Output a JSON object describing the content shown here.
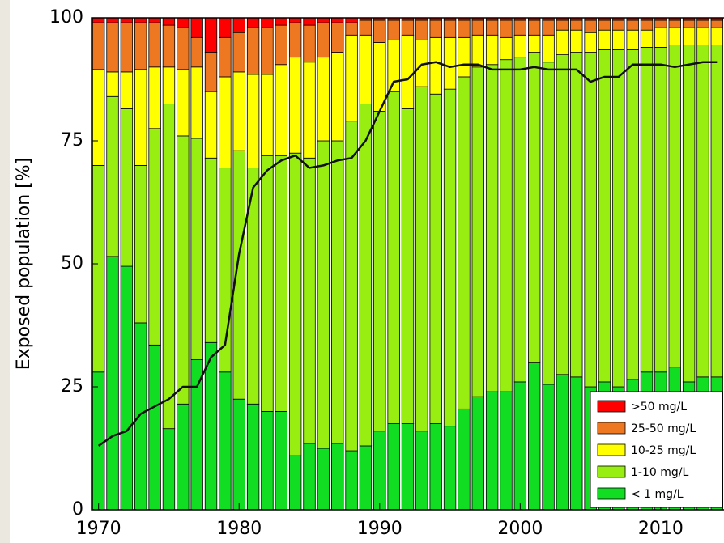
{
  "chart_data": {
    "type": "stacked-bar",
    "ylabel": "Exposed population [%]",
    "x": [
      1970,
      1971,
      1972,
      1973,
      1974,
      1975,
      1976,
      1977,
      1978,
      1979,
      1980,
      1981,
      1982,
      1983,
      1984,
      1985,
      1986,
      1987,
      1988,
      1989,
      1990,
      1991,
      1992,
      1993,
      1994,
      1995,
      1996,
      1997,
      1998,
      1999,
      2000,
      2001,
      2002,
      2003,
      2004,
      2005,
      2006,
      2007,
      2008,
      2009,
      2010,
      2011,
      2012,
      2013,
      2014
    ],
    "xlim": [
      1969.5,
      2014.5
    ],
    "xticks": [
      1970,
      1980,
      1990,
      2000,
      2010
    ],
    "ylim": [
      0,
      100
    ],
    "yticks": [
      0,
      25,
      50,
      75,
      100
    ],
    "legend": "lower right",
    "series": [
      {
        "name": "< 1 mg/L",
        "color": "#11dd22",
        "values": [
          28,
          51.5,
          49.5,
          38,
          33.5,
          16.5,
          21.5,
          30.5,
          34,
          28,
          22.5,
          21.5,
          20,
          20,
          11,
          13.5,
          12.5,
          13.5,
          12,
          13,
          16,
          17.5,
          17.5,
          16,
          17.5,
          17,
          20.5,
          23,
          24,
          24,
          26,
          30,
          25.5,
          27.5,
          27,
          25,
          26,
          25,
          26.5,
          28,
          28,
          29,
          26,
          27,
          27
        ]
      },
      {
        "name": "1-10 mg/L",
        "color": "#99ee11",
        "values": [
          42,
          32.5,
          32,
          32,
          44,
          66,
          54.5,
          45,
          37.5,
          41.5,
          50.5,
          48,
          52,
          52,
          61.5,
          58,
          62.5,
          61.5,
          67,
          69.5,
          65,
          67.5,
          64,
          70,
          67,
          68.5,
          67.5,
          67,
          66.5,
          67.5,
          66,
          63,
          65.5,
          65,
          66,
          68,
          67.5,
          68.5,
          67,
          66,
          66,
          65.5,
          68.5,
          67.5,
          67.5
        ]
      },
      {
        "name": "10-25 mg/L",
        "color": "#ffff00",
        "values": [
          19.5,
          5,
          7.5,
          19.5,
          12.5,
          7.5,
          13.5,
          14.5,
          13.5,
          18.5,
          16,
          19,
          16.5,
          18.5,
          19.5,
          19.5,
          17,
          18,
          17.5,
          14,
          14,
          10.5,
          15,
          9.5,
          11.5,
          10.5,
          8,
          6.5,
          6,
          4.5,
          4.5,
          3.5,
          5.5,
          5,
          4.5,
          4,
          4,
          4,
          4,
          3.5,
          4,
          3.5,
          3.5,
          3.5,
          3.5
        ]
      },
      {
        "name": "25-50 mg/L",
        "color": "#ee7722",
        "values": [
          9.5,
          10,
          10,
          9.5,
          9,
          8.5,
          8.5,
          6,
          8,
          8,
          8,
          9.5,
          9.5,
          8,
          7,
          7.5,
          7,
          6,
          2.5,
          3,
          4.5,
          4,
          3,
          4,
          3.5,
          3.5,
          3.5,
          3,
          3,
          3.5,
          3,
          3,
          3,
          2,
          2,
          2.5,
          2,
          2,
          2,
          2,
          1.5,
          1.5,
          1.5,
          1.5,
          1.5
        ]
      },
      {
        "name": ">50 mg/L",
        "color": "#ff0000",
        "values": [
          1,
          1,
          1,
          1,
          1,
          1.5,
          2,
          4,
          7,
          4,
          3,
          2,
          2,
          1.5,
          1,
          1.5,
          1,
          1,
          1,
          0.5,
          0.5,
          0.5,
          0.5,
          0.5,
          0.5,
          0.5,
          0.5,
          0.5,
          0.5,
          0.5,
          0.5,
          0.5,
          0.5,
          0.5,
          0.5,
          0.5,
          0.5,
          0.5,
          0.5,
          0.5,
          0.5,
          0.5,
          0.5,
          0.5,
          0.5
        ]
      }
    ],
    "line": {
      "color": "#111111",
      "values": [
        13,
        15,
        16,
        19.5,
        21,
        22.5,
        25,
        25,
        31,
        33.5,
        52,
        65.5,
        69,
        71,
        72,
        69.5,
        70,
        71,
        71.5,
        75,
        81,
        87,
        87.5,
        90.5,
        91,
        90,
        90.5,
        90.5,
        89.5,
        89.5,
        89.5,
        90,
        89.5,
        89.5,
        89.5,
        87,
        88,
        88,
        90.5,
        90.5,
        90.5,
        90,
        90.5,
        91,
        91
      ]
    }
  }
}
